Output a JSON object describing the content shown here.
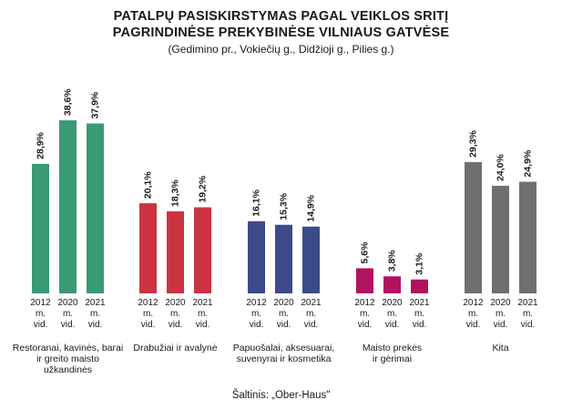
{
  "title_line1": "PATALPŲ PASISKIRSTYMAS PAGAL VEIKLOS SRITĮ",
  "title_line2": "PAGRINDINĖSE PREKYBINĖSE VILNIAUS GATVĖSE",
  "subtitle": "(Gedimino pr., Vokiečių g., Didžioji g., Pilies g.)",
  "source": "Šaltinis: „Ober-Haus\"",
  "chart_data": {
    "type": "bar",
    "year_labels": [
      [
        "2012",
        "m.",
        "vid."
      ],
      [
        "2020",
        "m.",
        "vid."
      ],
      [
        "2021",
        "m.",
        "vid."
      ]
    ],
    "groups": [
      {
        "label": [
          "Restoranai, kavinės, barai",
          "ir greito maisto",
          "užkandinės"
        ],
        "color": "#3a9a73",
        "values": [
          28.9,
          38.6,
          37.9
        ],
        "value_labels": [
          "28,9%",
          "38,6%",
          "37,9%"
        ]
      },
      {
        "label": [
          "Drabužiai ir avalynė"
        ],
        "color": "#cc3340",
        "values": [
          20.1,
          18.3,
          19.2
        ],
        "value_labels": [
          "20,1%",
          "18,3%",
          "19,2%"
        ]
      },
      {
        "label": [
          "Papuošalai, aksesuarai,",
          "suvenyrai ir kosmetika"
        ],
        "color": "#3d4a8a",
        "values": [
          16.1,
          15.3,
          14.9
        ],
        "value_labels": [
          "16,1%",
          "15,3%",
          "14,9%"
        ]
      },
      {
        "label": [
          "Maisto prekės",
          "ir gėrimai"
        ],
        "color": "#b0135f",
        "values": [
          5.6,
          3.8,
          3.1
        ],
        "value_labels": [
          "5,6%",
          "3,8%",
          "3,1%"
        ]
      },
      {
        "label": [
          "Kita"
        ],
        "color": "#6f6f6f",
        "values": [
          29.3,
          24.0,
          24.9
        ],
        "value_labels": [
          "29,3%",
          "24,0%",
          "24,9%"
        ]
      }
    ],
    "ylim": [
      0,
      40
    ],
    "grid": false
  }
}
